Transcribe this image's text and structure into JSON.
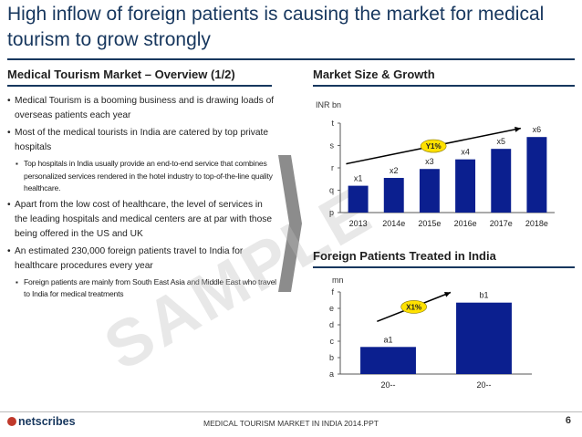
{
  "title": "High inflow of foreign patients is causing the market for medical tourism to grow strongly",
  "overview": {
    "heading": "Medical Tourism Market – Overview (1/2)",
    "bullets": [
      {
        "level": 1,
        "text": "Medical Tourism is a booming business and is drawing loads of overseas patients each year"
      },
      {
        "level": 1,
        "text": "Most of the medical tourists in India are catered by top private hospitals"
      },
      {
        "level": 2,
        "text": "Top hospitals in India usually provide an end-to-end service that combines personalized services rendered in the hotel industry to top-of-the-line quality healthcare."
      },
      {
        "level": 1,
        "text": "Apart from the low cost of healthcare, the level of services in the leading hospitals and medical centers are at par with those being offered in the US and UK"
      },
      {
        "level": 1,
        "text": "An estimated 230,000 foreign patients travel to India for healthcare procedures every year"
      },
      {
        "level": 2,
        "text": "Foreign patients are mainly from South East Asia and Middle East who travel to India for medical treatments"
      }
    ]
  },
  "watermark": "SAMPLE",
  "chart_data": [
    {
      "heading": "Market Size & Growth",
      "type": "bar",
      "unit_label": "INR bn",
      "categories": [
        "2013",
        "2014e",
        "2015e",
        "2016e",
        "2017e",
        "2018e"
      ],
      "values": [
        1.2,
        1.55,
        1.95,
        2.38,
        2.85,
        3.38
      ],
      "data_labels": [
        "x1",
        "x2",
        "x3",
        "x4",
        "x5",
        "x6"
      ],
      "y_tick_labels": [
        "p",
        "q",
        "r",
        "s",
        "t"
      ],
      "ylim": [
        0,
        4
      ],
      "growth_badge": "Y1%",
      "bar_color": "#0b1f8f",
      "badge_color": "#ffe100"
    },
    {
      "heading": "Foreign Patients Treated in India",
      "type": "bar",
      "unit_label": "mn",
      "categories": [
        "20--",
        "20--"
      ],
      "values": [
        1.65,
        4.35
      ],
      "data_labels": [
        "a1",
        "b1"
      ],
      "y_tick_labels": [
        "a",
        "b",
        "c",
        "d",
        "e",
        "f"
      ],
      "ylim": [
        0,
        5
      ],
      "growth_badge": "X1%",
      "bar_color": "#0b1f8f",
      "badge_color": "#ffe100"
    }
  ],
  "footer": {
    "logo": "netscribes",
    "document_name": "MEDICAL TOURISM MARKET IN INDIA 2014.PPT",
    "page_number": "6"
  }
}
